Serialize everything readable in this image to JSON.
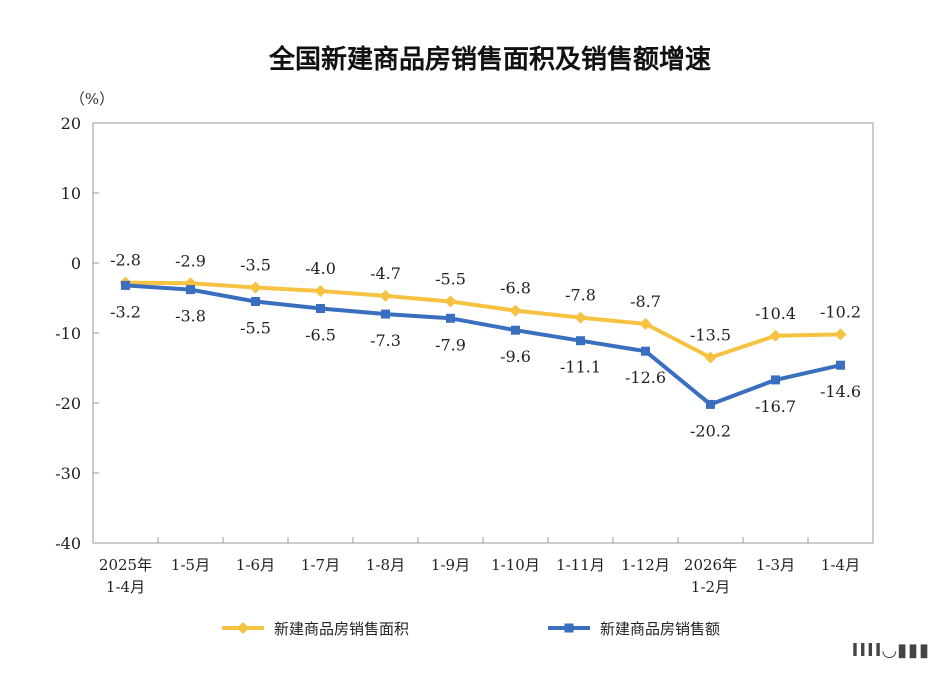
{
  "chart_data": {
    "type": "line",
    "title": "全国新建商品房销售面积及销售额增速",
    "unit_label": "（%）",
    "ylim": [
      -40,
      20
    ],
    "yticks": [
      "20",
      "10",
      "0",
      "-10",
      "-20",
      "-30",
      "-40"
    ],
    "ytick_values": [
      20,
      10,
      0,
      -10,
      -20,
      -30,
      -40
    ],
    "categories": [
      [
        "2025年",
        "1-4月"
      ],
      [
        "1-5月"
      ],
      [
        "1-6月"
      ],
      [
        "1-7月"
      ],
      [
        "1-8月"
      ],
      [
        "1-9月"
      ],
      [
        "1-10月"
      ],
      [
        "1-11月"
      ],
      [
        "1-12月"
      ],
      [
        "2026年",
        "1-2月"
      ],
      [
        "1-3月"
      ],
      [
        "1-4月"
      ]
    ],
    "series": [
      {
        "name": "新建商品房销售面积",
        "color": "#F5C242",
        "marker": "diamond",
        "values": [
          -2.8,
          -2.9,
          -3.5,
          -4.0,
          -4.7,
          -5.5,
          -6.8,
          -7.8,
          -8.7,
          -13.5,
          -10.4,
          -10.2
        ],
        "labels": [
          "-2.8",
          "-2.9",
          "-3.5",
          "-4.0",
          "-4.7",
          "-5.5",
          "-6.8",
          "-7.8",
          "-8.7",
          "-13.5",
          "-10.4",
          "-10.2"
        ],
        "label_position": "above"
      },
      {
        "name": "新建商品房销售额",
        "color": "#3A6FBF",
        "marker": "square",
        "values": [
          -3.2,
          -3.8,
          -5.5,
          -6.5,
          -7.3,
          -7.9,
          -9.6,
          -11.1,
          -12.6,
          -20.2,
          -16.7,
          -14.6
        ],
        "labels": [
          "-3.2",
          "-3.8",
          "-5.5",
          "-6.5",
          "-7.3",
          "-7.9",
          "-9.6",
          "-11.1",
          "-12.6",
          "-20.2",
          "-16.7",
          "-14.6"
        ],
        "label_position": "below"
      }
    ],
    "legend": "bottom-center",
    "grid": false
  },
  "watermark": "IIII◡▮▮▮"
}
